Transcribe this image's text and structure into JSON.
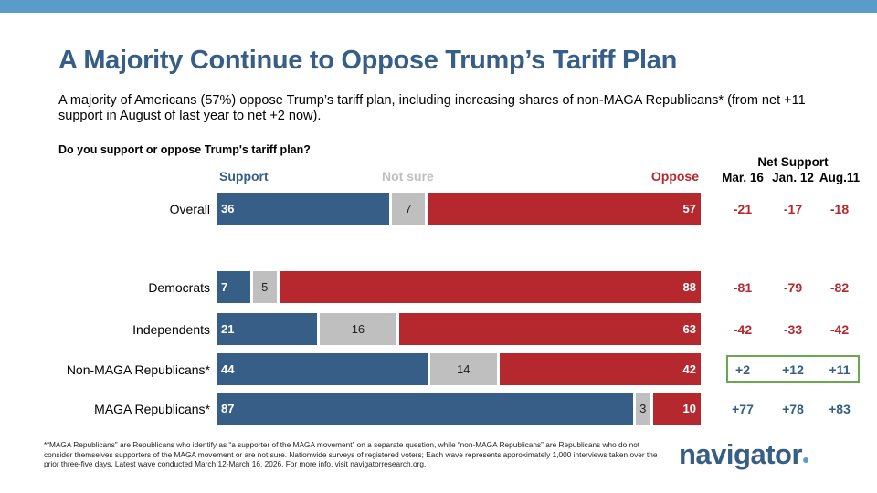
{
  "title": "A Majority Continue to Oppose Trump’s Tariff Plan",
  "subtitle": "A majority of Americans (57%) oppose Trump’s tariff plan, including increasing shares of non-MAGA Republicans* (from net +11 support in August of last year to net +2 now).",
  "question": "Do you support or oppose Trump's tariff plan?",
  "footnote": "*“MAGA Republicans” are Republicans who identify as “a supporter of the MAGA movement” on a separate question, while “non-MAGA Republicans” are Republicans who do not consider themselves supporters of the MAGA movement or are not sure. Nationwide surveys of registered voters; Each wave represents approximately 1,000 interviews taken over the prior three-five days. Latest wave conducted March 12-March 16, 2026. For more info, visit navigatorresearch.org.",
  "logo": "navigator",
  "colors": {
    "support": "#365e87",
    "not_sure": "#bfbfbf",
    "oppose": "#b5282e",
    "highlight_box": "#6aa84f",
    "band": "#5b9bc9"
  },
  "chart_data": {
    "type": "bar",
    "orientation": "horizontal-stacked",
    "legend": [
      "Support",
      "Not sure",
      "Oppose"
    ],
    "categories": [
      "Overall",
      "Democrats",
      "Independents",
      "Non-MAGA Republicans*",
      "MAGA Republicans*"
    ],
    "series": [
      {
        "name": "Support",
        "values": [
          36,
          7,
          21,
          44,
          87
        ]
      },
      {
        "name": "Not sure",
        "values": [
          7,
          5,
          16,
          14,
          3
        ]
      },
      {
        "name": "Oppose",
        "values": [
          57,
          88,
          63,
          42,
          10
        ]
      }
    ],
    "net_support": {
      "title": "Net Support",
      "columns": [
        "Mar. 16",
        "Jan. 12",
        "Aug.11"
      ],
      "rows": [
        [
          "-21",
          "-17",
          "-18"
        ],
        [
          "-81",
          "-79",
          "-82"
        ],
        [
          "-42",
          "-33",
          "-42"
        ],
        [
          "+2",
          "+12",
          "+11"
        ],
        [
          "+77",
          "+78",
          "+83"
        ]
      ],
      "highlighted_row": "Non-MAGA Republicans*"
    }
  }
}
